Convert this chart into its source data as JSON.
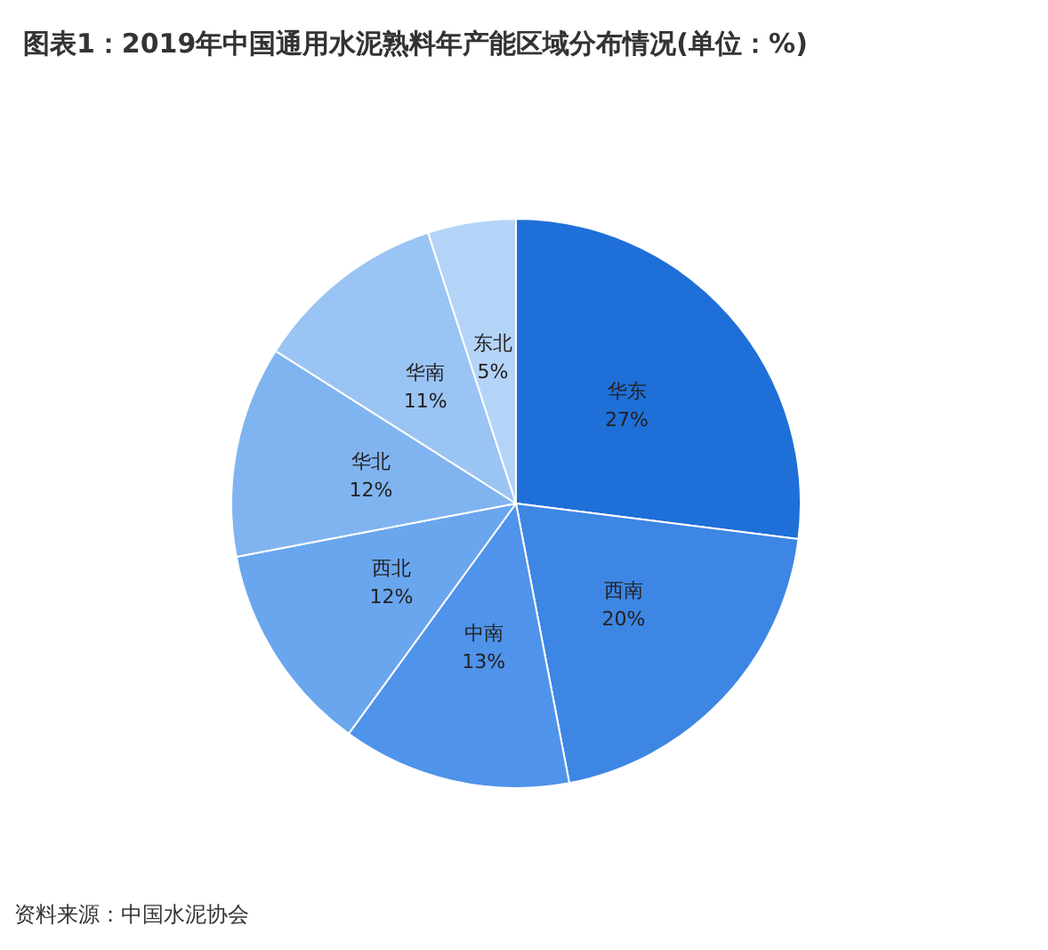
{
  "chart_data": {
    "type": "pie",
    "title": "图表1：2019年中国通用水泥熟料年产能区域分布情况(单位：%)",
    "categories": [
      "华东",
      "西南",
      "中南",
      "西北",
      "华北",
      "华南",
      "东北"
    ],
    "values": [
      27,
      20,
      13,
      12,
      12,
      11,
      5
    ],
    "value_labels": [
      "27%",
      "20%",
      "13%",
      "12%",
      "12%",
      "11%",
      "5%"
    ],
    "colors": [
      "#1f6fd8",
      "#3d86e4",
      "#4f93ea",
      "#6aa6ee",
      "#80b4f0",
      "#9ac4f4",
      "#b4d4f7"
    ],
    "annotations": [
      "资料来源：中国水泥协会"
    ],
    "legend": false
  }
}
